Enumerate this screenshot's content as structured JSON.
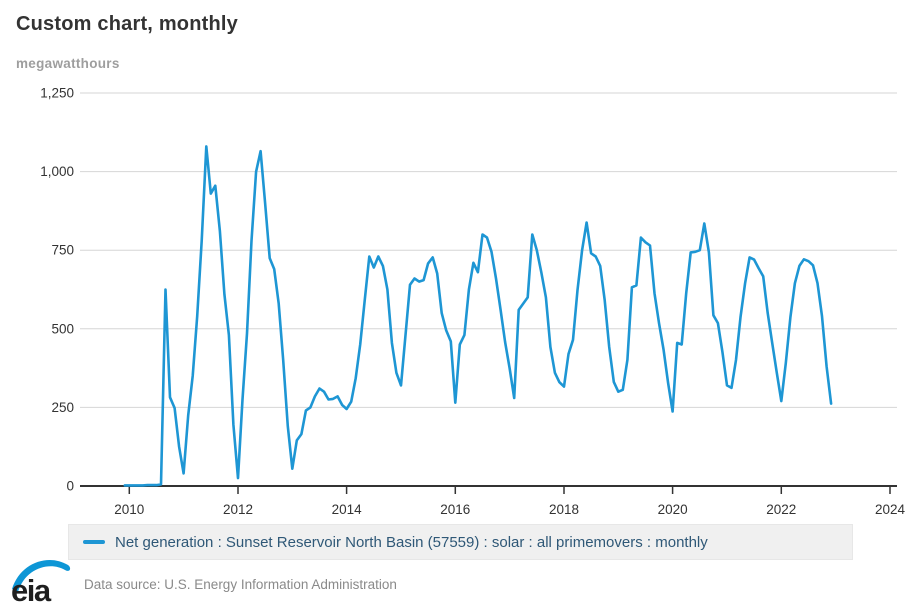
{
  "header": {
    "title": "Custom chart, monthly",
    "units": "megawatthours"
  },
  "legend": {
    "label": "Net generation : Sunset Reservoir North Basin (57559) : solar : all primemovers : monthly"
  },
  "footer": {
    "logo_text": "eia",
    "source": "Data source: U.S. Energy Information Administration"
  },
  "colors": {
    "line": "#1e96d4",
    "legend_text": "#2f5877",
    "legend_bg": "#f0f0f0",
    "legend_border": "#e7e7e7",
    "grid": "#d6d6d6",
    "axis": "#333333",
    "tick_label": "#333333",
    "title": "#333333",
    "units": "#9e9e9e",
    "source": "#8a8a8a",
    "logo_blue": "#0d96d6",
    "logo_text": "#1f1f1f"
  },
  "chart_data": {
    "type": "line",
    "title": "Custom chart, monthly",
    "ylabel": "megawatthours",
    "xlabel": "",
    "grid": "horizontal",
    "legend_position": "bottom",
    "ylim": [
      0,
      1250
    ],
    "xlim_years": [
      2009.2,
      2024.15
    ],
    "y_ticks": [
      0,
      250,
      500,
      750,
      1000,
      1250
    ],
    "y_tick_labels": [
      "0",
      "250",
      "500",
      "750",
      "1,000",
      "1,250"
    ],
    "x_ticks": [
      2010,
      2012,
      2014,
      2016,
      2018,
      2020,
      2022,
      2024
    ],
    "x_tick_labels": [
      "2010",
      "2012",
      "2014",
      "2016",
      "2018",
      "2020",
      "2022",
      "2024"
    ],
    "series": [
      {
        "name": "Net generation : Sunset Reservoir North Basin (57559) : solar : all primemovers : monthly",
        "color": "#1e96d4",
        "start": "2009-12",
        "frequency": "monthly",
        "values": [
          2,
          2,
          2,
          2,
          2,
          3,
          3,
          3,
          5,
          625,
          282,
          248,
          125,
          40,
          225,
          350,
          540,
          780,
          1080,
          930,
          955,
          810,
          610,
          480,
          195,
          25,
          275,
          485,
          780,
          1000,
          1065,
          900,
          725,
          690,
          580,
          400,
          190,
          55,
          145,
          165,
          240,
          250,
          285,
          310,
          300,
          275,
          277,
          285,
          258,
          245,
          268,
          343,
          450,
          590,
          730,
          695,
          730,
          700,
          625,
          455,
          360,
          320,
          480,
          640,
          660,
          650,
          655,
          708,
          727,
          676,
          550,
          495,
          460,
          265,
          450,
          480,
          625,
          710,
          680,
          800,
          790,
          745,
          660,
          560,
          458,
          375,
          280,
          560,
          580,
          600,
          800,
          750,
          680,
          600,
          442,
          360,
          330,
          316,
          420,
          465,
          623,
          750,
          838,
          740,
          730,
          700,
          591,
          442,
          331,
          300,
          306,
          401,
          632,
          638,
          790,
          775,
          765,
          613,
          518,
          433,
          328,
          237,
          455,
          450,
          613,
          743,
          745,
          750,
          835,
          743,
          543,
          518,
          427,
          320,
          312,
          401,
          537,
          645,
          727,
          720,
          692,
          667,
          550,
          455,
          360,
          270,
          391,
          537,
          645,
          700,
          721,
          715,
          702,
          645,
          540,
          380,
          262
        ]
      }
    ]
  }
}
